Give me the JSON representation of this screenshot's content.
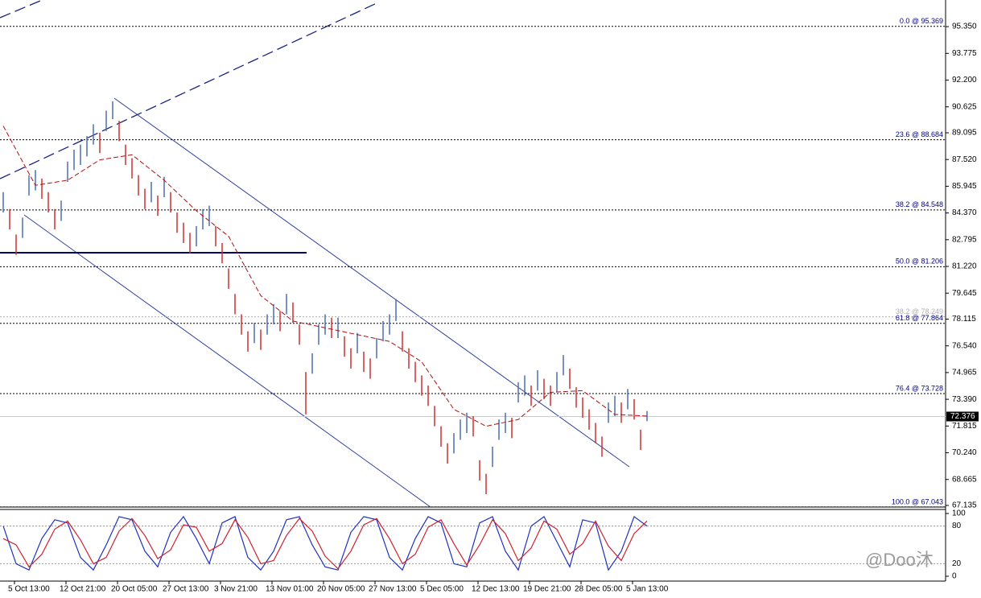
{
  "chart_data": [
    {
      "type": "ohlc",
      "ylim": [
        67.04,
        96.92
      ],
      "yticks": [
        {
          "value": 95.35,
          "label": "95.350"
        },
        {
          "value": 93.775,
          "label": "93.775"
        },
        {
          "value": 92.2,
          "label": "92.200"
        },
        {
          "value": 90.625,
          "label": "90.625"
        },
        {
          "value": 89.095,
          "label": "89.095"
        },
        {
          "value": 87.52,
          "label": "87.520"
        },
        {
          "value": 85.945,
          "label": "85.945"
        },
        {
          "value": 84.37,
          "label": "84.370"
        },
        {
          "value": 82.795,
          "label": "82.795"
        },
        {
          "value": 81.22,
          "label": "81.220"
        },
        {
          "value": 79.645,
          "label": "79.645"
        },
        {
          "value": 78.115,
          "label": "78.115"
        },
        {
          "value": 76.54,
          "label": "76.540"
        },
        {
          "value": 74.965,
          "label": "74.965"
        },
        {
          "value": 73.39,
          "label": "73.390"
        },
        {
          "value": 71.815,
          "label": "71.815"
        },
        {
          "value": 70.24,
          "label": "70.240"
        },
        {
          "value": 68.665,
          "label": "68.665"
        },
        {
          "value": 67.135,
          "label": "67.135"
        }
      ],
      "categories": [
        null,
        "5 Oct 13:00",
        null,
        null,
        null,
        null,
        null,
        null,
        null,
        "12 Oct 21:00",
        null,
        null,
        null,
        null,
        null,
        null,
        null,
        "20 Oct 05:00",
        null,
        null,
        null,
        null,
        null,
        null,
        null,
        "27 Oct 13:00",
        null,
        null,
        null,
        null,
        null,
        null,
        null,
        "3 Nov 21:00",
        null,
        null,
        null,
        null,
        null,
        null,
        null,
        "13 Nov 01:00",
        null,
        null,
        null,
        null,
        null,
        null,
        null,
        "20 Nov 05:00",
        null,
        null,
        null,
        null,
        null,
        null,
        null,
        "27 Nov 13:00",
        null,
        null,
        null,
        null,
        null,
        null,
        null,
        "5 Dec 05:00",
        null,
        null,
        null,
        null,
        null,
        null,
        null,
        "12 Dec 13:00",
        null,
        null,
        null,
        null,
        null,
        null,
        null,
        "19 Dec 21:00",
        null,
        null,
        null,
        null,
        null,
        null,
        null,
        "28 Dec 05:00",
        null,
        null,
        null,
        null,
        null,
        null,
        null,
        "5 Jan 13:00",
        null,
        null,
        null
      ],
      "high": [
        85.6,
        84.6,
        83.1,
        84.1,
        86.6,
        86.9,
        86.4,
        85.6,
        84.6,
        85.1,
        87.4,
        88.1,
        88.4,
        88.9,
        89.6,
        89.1,
        90.4,
        90.95,
        89.8,
        88.4,
        87.6,
        86.6,
        85.8,
        86.2,
        85.4,
        86.5,
        85.6,
        84.4,
        83.8,
        83.2,
        83.6,
        84.6,
        84.8,
        83.6,
        82.6,
        81.1,
        79.6,
        78.4,
        77.4,
        77.9,
        77.5,
        78.4,
        79.0,
        78.6,
        79.6,
        79.1,
        77.8,
        75.0,
        76.1,
        77.8,
        78.4,
        78.2,
        78.2,
        77.1,
        76.4,
        77.3,
        76.2,
        75.8,
        77.0,
        78.0,
        78.4,
        79.3,
        77.4,
        76.4,
        75.6,
        74.8,
        74.2,
        73.0,
        71.8,
        70.8,
        71.4,
        72.2,
        72.6,
        72.4,
        69.8,
        69.0,
        70.6,
        72.2,
        72.6,
        72.3,
        74.4,
        74.8,
        74.2,
        75.1,
        74.6,
        74.2,
        75.0,
        76.0,
        75.2,
        74.1,
        73.5,
        72.8,
        72.0,
        71.2,
        73.2,
        73.6,
        73.2,
        74.0,
        73.4,
        71.6,
        72.7
      ],
      "low": [
        84.4,
        83.4,
        81.9,
        82.9,
        85.4,
        85.7,
        85.2,
        84.4,
        83.4,
        83.9,
        86.2,
        86.9,
        87.2,
        87.7,
        88.4,
        87.9,
        89.2,
        89.9,
        88.6,
        87.2,
        86.4,
        85.4,
        84.6,
        85.0,
        84.2,
        85.3,
        84.4,
        83.2,
        82.6,
        82.0,
        82.4,
        83.4,
        83.6,
        82.4,
        81.4,
        79.9,
        78.4,
        77.2,
        76.2,
        76.7,
        76.3,
        77.2,
        77.8,
        77.4,
        78.4,
        77.9,
        76.6,
        72.5,
        74.9,
        76.6,
        77.2,
        77.0,
        77.0,
        75.9,
        75.2,
        76.1,
        75.0,
        74.6,
        75.8,
        76.8,
        77.2,
        78.0,
        76.2,
        75.2,
        74.4,
        73.6,
        73.0,
        71.8,
        70.6,
        69.6,
        70.2,
        71.0,
        71.4,
        71.2,
        68.6,
        67.8,
        69.4,
        71.0,
        71.4,
        71.1,
        73.2,
        73.6,
        73.0,
        73.9,
        73.4,
        73.0,
        73.8,
        74.8,
        74.0,
        72.9,
        72.3,
        71.6,
        70.8,
        70.0,
        72.0,
        72.4,
        72.0,
        72.8,
        72.2,
        70.4,
        72.1
      ],
      "up_color": "#4a6fb5",
      "down_color": "#d03030",
      "moving_average": {
        "color": "#b01010",
        "x": [
          0,
          5,
          10,
          15,
          20,
          25,
          30,
          35,
          40,
          45,
          50,
          55,
          60,
          65,
          70,
          75,
          80,
          85,
          90,
          95,
          100
        ],
        "values": [
          89.5,
          86.0,
          86.3,
          87.5,
          87.8,
          86.3,
          84.5,
          83.0,
          79.5,
          78.0,
          77.6,
          77.2,
          76.8,
          75.6,
          72.8,
          71.8,
          72.2,
          73.8,
          73.9,
          72.5,
          72.4
        ]
      },
      "levels": [
        {
          "label": "0.0 @ 95.369",
          "value": 95.369,
          "color": "#000080"
        },
        {
          "label": "23.6 @ 88.684",
          "value": 88.684,
          "color": "#000080"
        },
        {
          "label": "38.2 @ 84.548",
          "value": 84.548,
          "color": "#000080"
        },
        {
          "label": "50.0 @ 81.206",
          "value": 81.206,
          "color": "#000080"
        },
        {
          "label": "38.2 @ 78.249",
          "value": 78.249,
          "color": "#b0b0b0"
        },
        {
          "label": "61.8 @ 77.864",
          "value": 77.864,
          "color": "#000080"
        },
        {
          "label": "76.4 @ 73.728",
          "value": 73.728,
          "color": "#000080"
        },
        {
          "label": "100.0 @ 67.043",
          "value": 67.043,
          "color": "#000080"
        }
      ],
      "last_price": {
        "value": 72.376,
        "label": "72.376"
      },
      "watermark": "@Doo沐"
    },
    {
      "type": "line",
      "ylim": [
        0,
        100
      ],
      "yticks": [
        100,
        80,
        20,
        0
      ],
      "x": [
        0,
        2,
        4,
        6,
        8,
        10,
        12,
        14,
        16,
        18,
        20,
        22,
        24,
        26,
        28,
        30,
        32,
        34,
        36,
        38,
        40,
        42,
        44,
        46,
        48,
        50,
        52,
        54,
        56,
        58,
        60,
        62,
        64,
        66,
        68,
        70,
        72,
        74,
        76,
        78,
        80,
        82,
        84,
        86,
        88,
        90,
        92,
        94,
        96,
        98,
        100
      ],
      "series": [
        {
          "color": "#2030c0",
          "values": [
            80,
            20,
            10,
            60,
            90,
            85,
            30,
            10,
            50,
            95,
            90,
            40,
            15,
            70,
            95,
            60,
            20,
            85,
            95,
            30,
            10,
            40,
            90,
            95,
            50,
            15,
            10,
            70,
            95,
            90,
            30,
            10,
            60,
            95,
            85,
            20,
            15,
            85,
            95,
            40,
            10,
            80,
            95,
            55,
            15,
            90,
            85,
            10,
            40,
            95,
            80
          ]
        },
        {
          "color": "#d02030",
          "values": [
            60,
            50,
            15,
            35,
            75,
            88,
            58,
            20,
            30,
            72,
            92,
            65,
            28,
            42,
            82,
            78,
            40,
            52,
            90,
            62,
            20,
            25,
            65,
            92,
            72,
            32,
            12,
            40,
            82,
            92,
            60,
            20,
            35,
            78,
            90,
            52,
            18,
            50,
            90,
            68,
            25,
            45,
            88,
            75,
            35,
            52,
            88,
            48,
            25,
            68,
            88
          ]
        }
      ]
    }
  ]
}
